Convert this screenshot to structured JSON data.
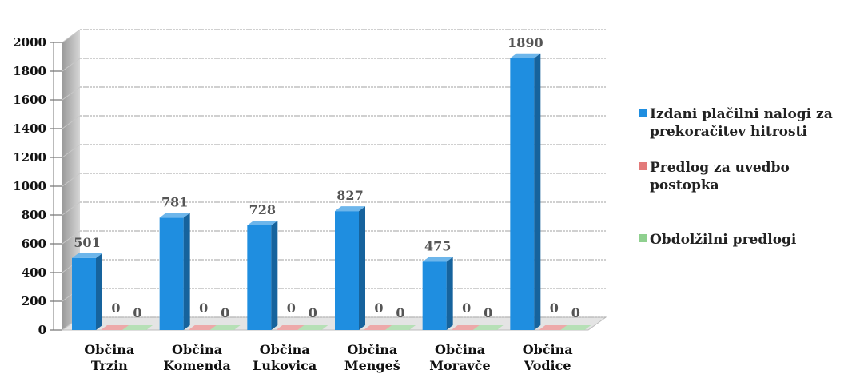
{
  "chart_data": {
    "type": "bar",
    "style": "3d-clustered-column",
    "categories": [
      "Občina Trzin",
      "Občina Komenda",
      "Občina Lukovica",
      "Občina Mengeš",
      "Občina Moravče",
      "Občina Vodice"
    ],
    "category_lines": [
      [
        "Občina",
        "Trzin"
      ],
      [
        "Občina",
        "Komenda"
      ],
      [
        "Občina",
        "Lukovica"
      ],
      [
        "Občina",
        "Mengeš"
      ],
      [
        "Občina",
        "Moravče"
      ],
      [
        "Občina",
        "Vodice"
      ]
    ],
    "series": [
      {
        "name": "Izdani plačilni nalogi za prekoračitev hitrosti",
        "name_lines": [
          "Izdani plačilni nalogi za",
          "prekoračitev hitrosti"
        ],
        "color": "#1f8ee0",
        "values": [
          501,
          781,
          728,
          827,
          475,
          1890
        ]
      },
      {
        "name": "Predlog za uvedbo postopka",
        "name_lines": [
          "Predlog za uvedbo",
          "postopka"
        ],
        "color": "#e37a7a",
        "values": [
          0,
          0,
          0,
          0,
          0,
          0
        ]
      },
      {
        "name": "Obdolžilni predlogi",
        "name_lines": [
          "Obdolžilni predlogi"
        ],
        "color": "#8fd08f",
        "values": [
          0,
          0,
          0,
          0,
          0,
          0
        ]
      }
    ],
    "y_ticks": [
      0,
      200,
      400,
      600,
      800,
      1000,
      1200,
      1400,
      1600,
      1800,
      2000
    ],
    "ylim": [
      0,
      2000
    ],
    "grid": true,
    "legend_position": "right",
    "data_labels": true
  }
}
